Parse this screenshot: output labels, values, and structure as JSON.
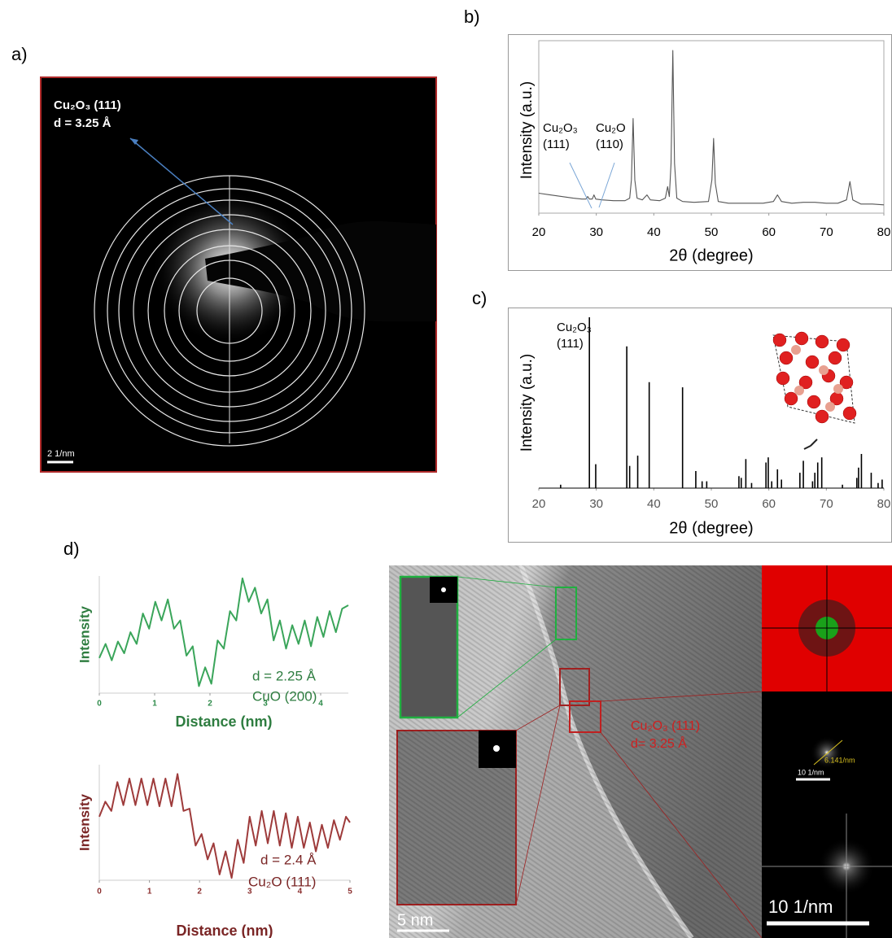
{
  "panel_labels": [
    "a)",
    "b)",
    "c)",
    "d)"
  ],
  "saed": {
    "annotation": [
      "Cu₂O₃ (111)",
      "d = 3.25 Å"
    ],
    "scale_bar": "2 1/nm"
  },
  "hrtem": {
    "annotation": [
      "Cu₂O₃ (111)",
      "d= 3.25 Å"
    ],
    "scale_bar": "5 nm",
    "fft_labels": [
      "6.141/nm",
      "10 1/nm",
      "10 1/nm"
    ]
  },
  "chart_data": [
    {
      "type": "line",
      "xlabel": "2θ (degree)",
      "ylabel": "Intensity (a.u.)",
      "color": "#555555",
      "annotations": [
        "Cu₂O₃",
        "(111)",
        "Cu₂O",
        "(110)"
      ],
      "xlim": [
        20,
        80
      ],
      "xticks": [
        20,
        30,
        40,
        50,
        60,
        70,
        80
      ],
      "ylim": [
        0,
        100
      ],
      "x": [
        20,
        22,
        24,
        26,
        27.5,
        28.2,
        28.5,
        28.8,
        29.3,
        29.6,
        29.9,
        31,
        33,
        35,
        35.8,
        36.1,
        36.4,
        36.7,
        37.1,
        38,
        38.8,
        39.4,
        41,
        42,
        42.4,
        42.7,
        43.0,
        43.3,
        43.6,
        44,
        45,
        47,
        49.5,
        50.1,
        50.4,
        50.7,
        51.2,
        53,
        56,
        59,
        60.8,
        61.5,
        62.2,
        64,
        66,
        68,
        70,
        72,
        73.5,
        74.1,
        74.6,
        76,
        78,
        80
      ],
      "values": [
        12,
        11,
        10,
        9,
        8.5,
        8.5,
        10,
        8.5,
        8.5,
        11,
        8.5,
        8,
        7.5,
        7.5,
        9,
        20,
        57,
        20,
        9,
        8,
        11,
        8,
        7.5,
        9,
        16,
        10,
        30,
        98,
        30,
        9,
        7,
        6.5,
        7,
        20,
        45,
        18,
        7,
        6,
        6,
        6,
        7,
        11,
        7,
        6,
        6.5,
        6.5,
        6,
        6,
        8,
        19,
        8,
        5.5,
        5.5,
        5
      ]
    },
    {
      "type": "stick",
      "xlabel": "2θ (degree)",
      "ylabel": "Intensity (a.u.)",
      "color": "#000000",
      "annotations": [
        "Cu₂O₃",
        "(111)"
      ],
      "xlim": [
        20,
        80
      ],
      "xticks": [
        20,
        30,
        40,
        50,
        60,
        70,
        80
      ],
      "ylim": [
        0,
        100
      ],
      "x": [
        23.8,
        28.8,
        29.9,
        35.3,
        35.8,
        37.2,
        39.2,
        45.0,
        47.3,
        48.4,
        49.2,
        54.8,
        55.2,
        56.0,
        57.0,
        59.5,
        59.9,
        60.5,
        61.5,
        62.2,
        65.4,
        66.0,
        67.6,
        68.0,
        68.5,
        69.2,
        72.8,
        75.3,
        75.6,
        76.1,
        77.8,
        79.0,
        79.7
      ],
      "values": [
        2,
        100,
        14,
        83,
        13,
        19,
        62,
        59,
        10,
        4,
        4,
        7,
        6,
        17,
        3,
        15,
        18,
        4,
        11,
        5,
        9,
        16,
        4,
        9,
        15,
        18,
        2,
        6,
        12,
        20,
        9,
        3,
        5
      ]
    },
    {
      "type": "line",
      "xlabel": "Distance (nm)",
      "ylabel": "Intensity",
      "color": "#3aa55a",
      "annotations": [
        "d = 2.25 Å",
        "CuO (200)"
      ],
      "xlim": [
        0,
        4.5
      ],
      "xticks": [
        0,
        1,
        2,
        3,
        4
      ],
      "ylim": [
        0,
        100
      ],
      "x": [
        0,
        0.1125,
        0.225,
        0.3375,
        0.45,
        0.5625,
        0.675,
        0.7875,
        0.9,
        1.0125,
        1.125,
        1.2375,
        1.35,
        1.4625,
        1.575,
        1.6875,
        1.8,
        1.9125,
        2.025,
        2.1375,
        2.25,
        2.3625,
        2.475,
        2.5875,
        2.7,
        2.8125,
        2.925,
        3.0375,
        3.15,
        3.2625,
        3.375,
        3.4875,
        3.6,
        3.7125,
        3.825,
        3.9375,
        4.05,
        4.1625,
        4.275,
        4.3875,
        4.5
      ],
      "values": [
        30,
        42,
        28,
        44,
        34,
        52,
        42,
        68,
        55,
        78,
        62,
        80,
        55,
        62,
        32,
        40,
        6,
        22,
        8,
        45,
        38,
        70,
        62,
        98,
        78,
        90,
        68,
        80,
        45,
        62,
        38,
        58,
        42,
        62,
        40,
        65,
        48,
        70,
        52,
        72,
        75
      ]
    },
    {
      "type": "line",
      "xlabel": "Distance (nm)",
      "ylabel": "Intensity",
      "color": "#9e3b3b",
      "annotations": [
        "d = 2.4 Å",
        "Cu₂O (111)"
      ],
      "xlim": [
        0,
        5
      ],
      "xticks": [
        0,
        1,
        2,
        3,
        4,
        5
      ],
      "ylim": [
        0,
        100
      ],
      "x": [
        0,
        0.12,
        0.24,
        0.36,
        0.48,
        0.6,
        0.72,
        0.84,
        0.96,
        1.08,
        1.2,
        1.32,
        1.44,
        1.56,
        1.68,
        1.8,
        1.92,
        2.04,
        2.16,
        2.28,
        2.4,
        2.52,
        2.64,
        2.76,
        2.88,
        3.0,
        3.12,
        3.24,
        3.36,
        3.48,
        3.6,
        3.72,
        3.84,
        3.96,
        4.08,
        4.2,
        4.32,
        4.44,
        4.56,
        4.68,
        4.8,
        4.92,
        5.0
      ],
      "values": [
        55,
        68,
        60,
        85,
        65,
        88,
        65,
        88,
        65,
        88,
        64,
        88,
        64,
        92,
        60,
        62,
        30,
        40,
        18,
        32,
        5,
        25,
        2,
        35,
        15,
        55,
        30,
        60,
        32,
        60,
        30,
        58,
        28,
        55,
        28,
        50,
        25,
        48,
        28,
        52,
        35,
        55,
        50
      ]
    }
  ]
}
